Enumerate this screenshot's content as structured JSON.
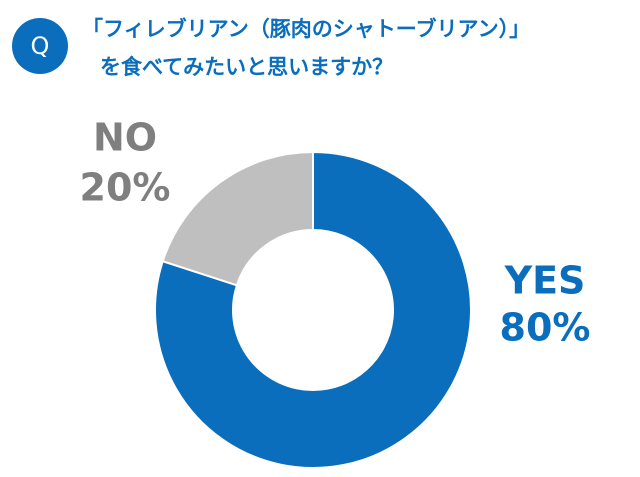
{
  "chart_data": {
    "type": "donut",
    "badge": "Q",
    "title": [
      "「フィレブリアン（豚肉のシャトーブリアン）」",
      "を食べてみたいと思いますか？"
    ],
    "categories": [
      "YES",
      "NO"
    ],
    "values": [
      80,
      20
    ],
    "value_labels": [
      "80%",
      "20%"
    ],
    "colors": [
      "#0a6ebd",
      "#bfbfbf"
    ],
    "label_colors": [
      "#0a6ebd",
      "#7f7f7f"
    ]
  }
}
